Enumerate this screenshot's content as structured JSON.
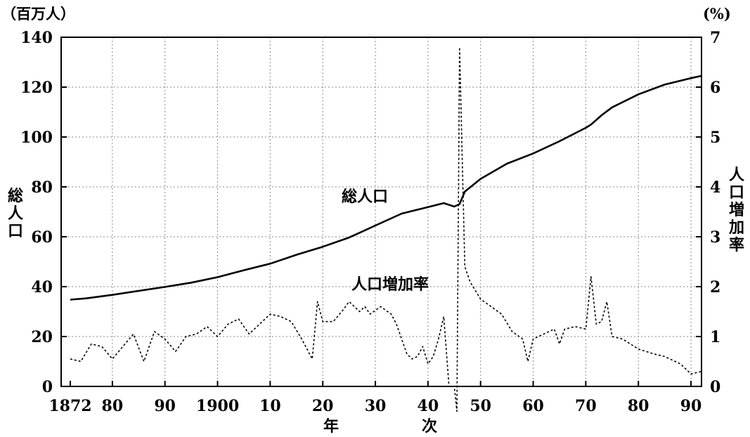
{
  "chart_data": {
    "type": "line",
    "left_unit": "（百万人）",
    "right_unit": "(%)",
    "left_axis_label": [
      "総",
      "人",
      "口"
    ],
    "right_axis_label": [
      "人",
      "口",
      "増",
      "加",
      "率"
    ],
    "x_axis_label": [
      "年",
      "次"
    ],
    "x_ticks": [
      {
        "value": 1872,
        "label": "1872"
      },
      {
        "value": 1880,
        "label": "80"
      },
      {
        "value": 1890,
        "label": "90"
      },
      {
        "value": 1900,
        "label": "1900"
      },
      {
        "value": 1910,
        "label": "10"
      },
      {
        "value": 1920,
        "label": "20"
      },
      {
        "value": 1930,
        "label": "30"
      },
      {
        "value": 1940,
        "label": "40"
      },
      {
        "value": 1950,
        "label": "50"
      },
      {
        "value": 1960,
        "label": "60"
      },
      {
        "value": 1970,
        "label": "70"
      },
      {
        "value": 1980,
        "label": "80"
      },
      {
        "value": 1990,
        "label": "90"
      }
    ],
    "xlim": [
      1872,
      1992
    ],
    "y_left": {
      "ticks": [
        0,
        20,
        40,
        60,
        80,
        100,
        120,
        140
      ],
      "ylim": [
        0,
        140
      ]
    },
    "y_right": {
      "ticks": [
        0,
        1,
        2,
        3,
        4,
        5,
        6,
        7
      ],
      "ylim": [
        0,
        7
      ]
    },
    "grid": true,
    "series": [
      {
        "name": "総人口",
        "axis": "left",
        "style": "solid",
        "x": [
          1872,
          1875,
          1880,
          1885,
          1890,
          1895,
          1900,
          1905,
          1910,
          1915,
          1920,
          1925,
          1930,
          1935,
          1940,
          1943,
          1945,
          1946,
          1947,
          1950,
          1955,
          1960,
          1965,
          1970,
          1971,
          1973,
          1975,
          1980,
          1985,
          1990,
          1992
        ],
        "y": [
          34.8,
          35.3,
          36.7,
          38.3,
          39.9,
          41.6,
          43.8,
          46.6,
          49.2,
          52.8,
          56.0,
          59.7,
          64.5,
          69.3,
          71.9,
          73.5,
          72.1,
          73.1,
          78.1,
          83.2,
          89.3,
          93.4,
          98.3,
          103.7,
          105.0,
          108.7,
          111.9,
          117.1,
          121.0,
          123.6,
          124.5
        ]
      },
      {
        "name": "人口増加率",
        "axis": "right",
        "style": "dotted",
        "x": [
          1872,
          1874,
          1876,
          1878,
          1880,
          1882,
          1884,
          1886,
          1888,
          1890,
          1892,
          1894,
          1896,
          1898,
          1900,
          1902,
          1904,
          1906,
          1908,
          1910,
          1912,
          1914,
          1916,
          1918,
          1919,
          1920,
          1922,
          1924,
          1925,
          1927,
          1928,
          1929,
          1931,
          1933,
          1934,
          1936,
          1937,
          1938,
          1939,
          1940,
          1941,
          1942,
          1943,
          1944,
          1945,
          1945.5,
          1946,
          1947,
          1948,
          1950,
          1952,
          1954,
          1956,
          1958,
          1959,
          1960,
          1962,
          1964,
          1965,
          1966,
          1968,
          1970,
          1971,
          1972,
          1973,
          1974,
          1975,
          1977,
          1980,
          1983,
          1985,
          1988,
          1990,
          1992
        ],
        "y": [
          0.55,
          0.5,
          0.85,
          0.8,
          0.55,
          0.8,
          1.05,
          0.5,
          1.1,
          0.95,
          0.7,
          1.0,
          1.05,
          1.2,
          1.0,
          1.25,
          1.35,
          1.05,
          1.25,
          1.45,
          1.4,
          1.3,
          0.95,
          0.55,
          1.7,
          1.3,
          1.3,
          1.55,
          1.7,
          1.5,
          1.6,
          1.45,
          1.6,
          1.45,
          1.25,
          0.65,
          0.55,
          0.6,
          0.8,
          0.45,
          0.6,
          0.95,
          1.4,
          0,
          0,
          -0.5,
          6.8,
          2.4,
          2.1,
          1.75,
          1.6,
          1.45,
          1.1,
          0.95,
          0.5,
          0.95,
          1.05,
          1.15,
          0.85,
          1.15,
          1.2,
          1.15,
          2.2,
          1.25,
          1.3,
          1.7,
          1.0,
          0.95,
          0.75,
          0.65,
          0.6,
          0.45,
          0.25,
          0.3
        ]
      }
    ]
  }
}
